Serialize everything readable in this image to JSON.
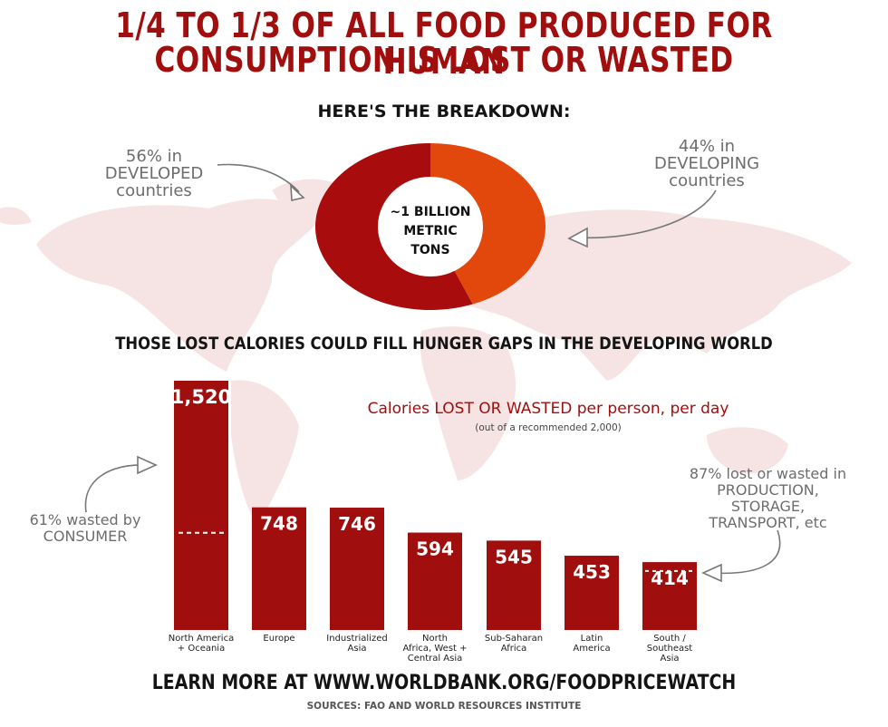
{
  "title": {
    "line1": "1/4 TO 1/3 OF ALL FOOD PRODUCED FOR HUMAN",
    "line2": "CONSUMPTION IS LOST OR WASTED"
  },
  "breakdown_heading": "HERE'S THE BREAKDOWN:",
  "donut": {
    "center_line1": "~1 BILLION",
    "center_line2": "METRIC",
    "center_line3": "TONS",
    "left_annotation": [
      "56% in",
      "DEVELOPED",
      "countries"
    ],
    "right_annotation": [
      "44% in",
      "DEVELOPING",
      "countries"
    ]
  },
  "hunger_heading": "THOSE LOST CALORIES COULD FILL HUNGER GAPS IN THE DEVELOPING WORLD",
  "bar_title": "Calories LOST OR WASTED per person, per day",
  "bar_subtitle": "(out of a recommended 2,000)",
  "consumer_note": [
    "61% wasted by",
    "CONSUMER"
  ],
  "production_note": [
    "87% lost or wasted in",
    "PRODUCTION,",
    "STORAGE,",
    "TRANSPORT, etc"
  ],
  "footer": {
    "learn_more": "LEARN MORE AT WWW.WORLDBANK.ORG/FOODPRICEWATCH",
    "sources": "SOURCES: FAO AND WORLD RESOURCES INSTITUTE"
  },
  "colors": {
    "title_red": "#a10e0e",
    "bar_red": "#a10e0e",
    "developed": "#a80c0c",
    "developing": "#e2470c",
    "map": "#f6e4e4",
    "annotation_grey": "#6d6d6d"
  },
  "chart_data": [
    {
      "type": "pie",
      "title": "",
      "labels": [
        "DEVELOPED countries",
        "DEVELOPING countries"
      ],
      "values": [
        56,
        44
      ],
      "center_label": "~1 BILLION METRIC TONS"
    },
    {
      "type": "bar",
      "title": "Calories LOST OR WASTED per person, per day",
      "subtitle": "(out of a recommended 2,000)",
      "categories": [
        [
          "North America",
          "+ Oceania"
        ],
        [
          "Europe"
        ],
        [
          "Industrialized",
          "Asia"
        ],
        [
          "North",
          "Africa, West +",
          "Central Asia"
        ],
        [
          "Sub-Saharan",
          "Africa"
        ],
        [
          "Latin",
          "America"
        ],
        [
          "South /",
          "Southeast",
          "Asia"
        ]
      ],
      "values": [
        1520,
        748,
        746,
        594,
        545,
        453,
        414
      ],
      "value_labels": [
        "1,520",
        "748",
        "746",
        "594",
        "545",
        "453",
        "414"
      ],
      "consumer_share_markers": [
        {
          "category_index": 0,
          "percent_wasted_by_consumer": 61
        }
      ],
      "production_share_markers": [
        {
          "category_index": 6,
          "percent_lost_in_production": 87
        }
      ],
      "ylim": [
        0,
        1520
      ],
      "grid": false
    }
  ]
}
